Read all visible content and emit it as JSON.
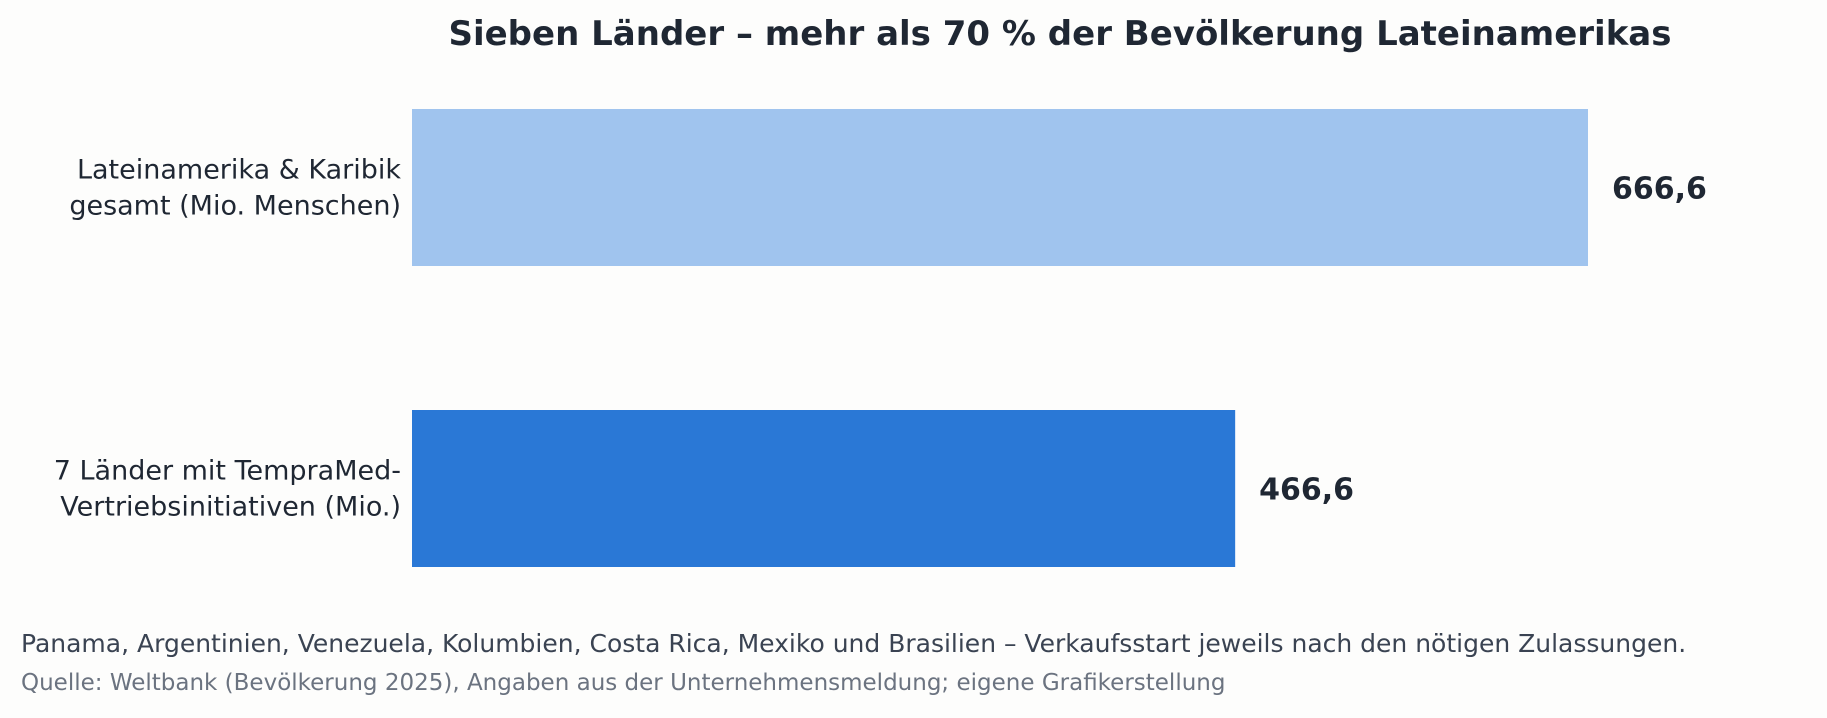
{
  "chart_data": {
    "type": "bar",
    "orientation": "horizontal",
    "title": "Sieben Länder – mehr als 70 % der Bevölkerung Lateinamerikas",
    "categories": [
      [
        "Lateinamerika & Karibik",
        "gesamt (Mio. Menschen)"
      ],
      [
        "7 Länder mit TempraMed-",
        "Vertriebsinitiativen (Mio.)"
      ]
    ],
    "values": [
      666.6,
      466.6
    ],
    "value_labels": [
      "666,6",
      "466,6"
    ],
    "colors": [
      "#a0c4ee",
      "#2a78d6"
    ],
    "xlim": [
      0,
      666.6
    ],
    "grid": false,
    "legend": "none"
  },
  "footnote": "Panama, Argentinien, Venezuela, Kolumbien, Costa Rica, Mexiko und Brasilien – Verkaufsstart jeweils nach den nötigen Zulassungen.",
  "source": "Quelle: Weltbank (Bevölkerung 2025), Angaben aus der Unternehmensmeldung; eigene Grafikerstellung"
}
